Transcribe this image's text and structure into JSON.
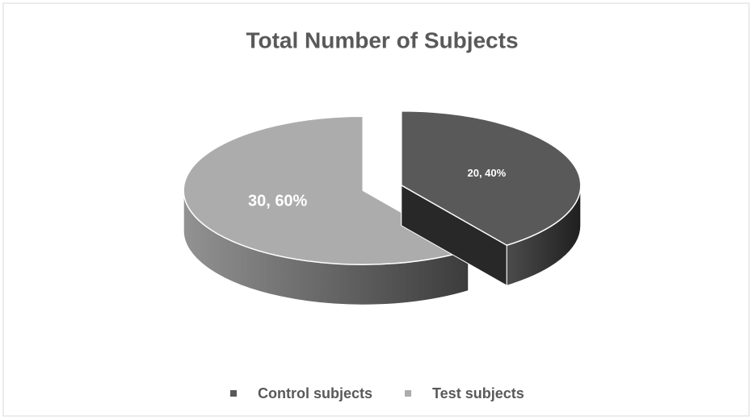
{
  "chart_data": {
    "type": "pie",
    "title": "Total Number of Subjects",
    "categories": [
      "Control subjects",
      "Test subjects"
    ],
    "values": [
      20,
      30
    ],
    "value_labels": [
      "20, 40%",
      "30, 60%"
    ],
    "colors": [
      "#595959",
      "#acacac"
    ],
    "legend": "bottom"
  }
}
